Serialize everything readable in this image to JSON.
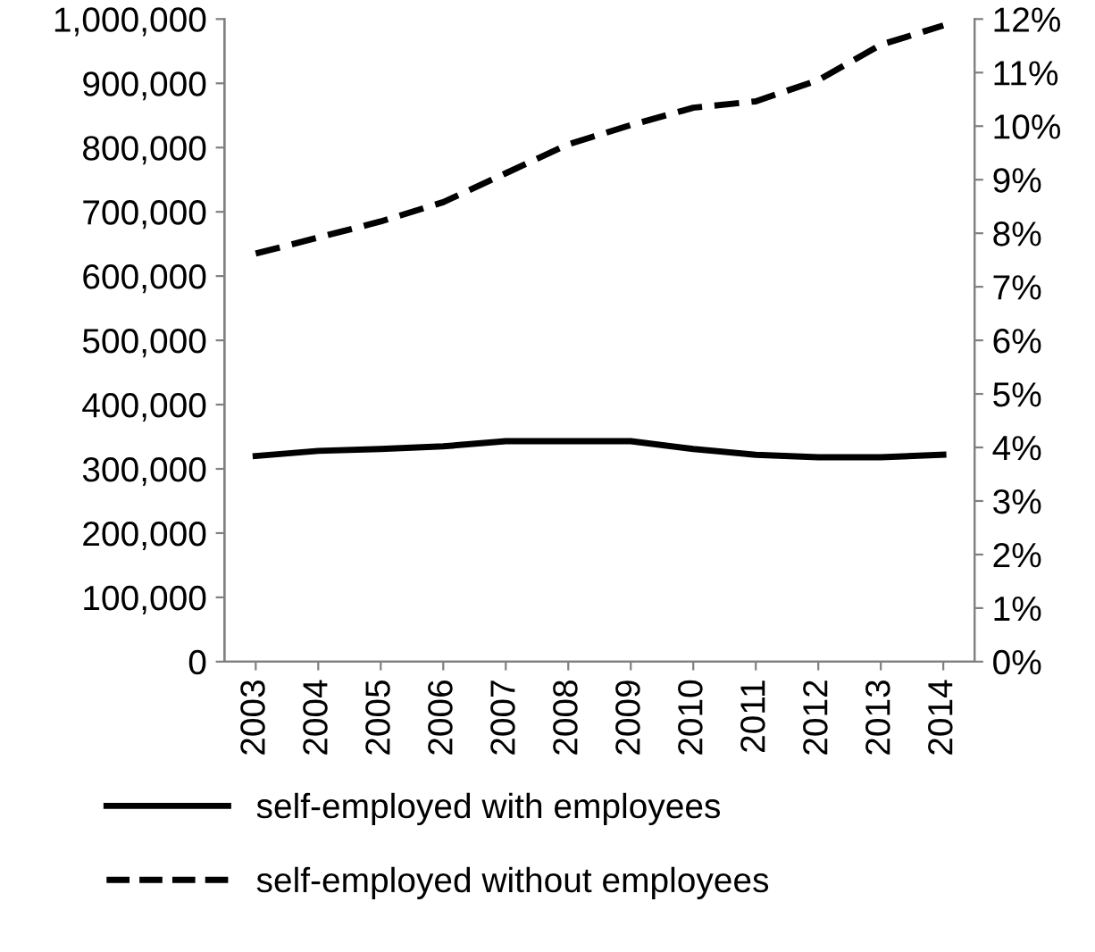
{
  "chart_data": {
    "type": "line",
    "categories": [
      "2003",
      "2004",
      "2005",
      "2006",
      "2007",
      "2008",
      "2009",
      "2010",
      "2011",
      "2012",
      "2013",
      "2014"
    ],
    "series": [
      {
        "name": "self-employed with employees",
        "color": "#000000",
        "line_style": "solid",
        "values": [
          320000,
          328000,
          331000,
          335000,
          343000,
          343000,
          343000,
          331000,
          322000,
          318000,
          318000,
          322000
        ]
      },
      {
        "name": "self-employed without employees",
        "color": "#000000",
        "line_style": "dashed",
        "values": [
          635000,
          660000,
          685000,
          715000,
          760000,
          805000,
          835000,
          862000,
          872000,
          905000,
          960000,
          990000
        ]
      }
    ],
    "ylim": [
      0,
      1000000
    ],
    "yticks": [
      0,
      {
        "value": 100000,
        "label": "100,000"
      },
      {
        "value": 200000,
        "label": "200,000"
      },
      {
        "value": 300000,
        "label": "300,000"
      },
      {
        "value": 400000,
        "label": "400,000"
      },
      {
        "value": 500000,
        "label": "500,000"
      },
      {
        "value": 600000,
        "label": "600,000"
      },
      {
        "value": 700000,
        "label": "700,000"
      },
      {
        "value": 800000,
        "label": "800,000"
      },
      {
        "value": 900000,
        "label": "900,000"
      },
      {
        "value": 1000000,
        "label": "1,000,000"
      }
    ],
    "y2lim": [
      0,
      12
    ],
    "y2ticks": [
      {
        "value": 0,
        "label": "0%"
      },
      {
        "value": 1,
        "label": "1%"
      },
      {
        "value": 2,
        "label": "2%"
      },
      {
        "value": 3,
        "label": "3%"
      },
      {
        "value": 4,
        "label": "4%"
      },
      {
        "value": 5,
        "label": "5%"
      },
      {
        "value": 6,
        "label": "6%"
      },
      {
        "value": 7,
        "label": "7%"
      },
      {
        "value": 8,
        "label": "8%"
      },
      {
        "value": 9,
        "label": "9%"
      },
      {
        "value": 10,
        "label": "10%"
      },
      {
        "value": 11,
        "label": "11%"
      },
      {
        "value": 12,
        "label": "12%"
      }
    ],
    "grid": false,
    "legend": "bottom"
  }
}
